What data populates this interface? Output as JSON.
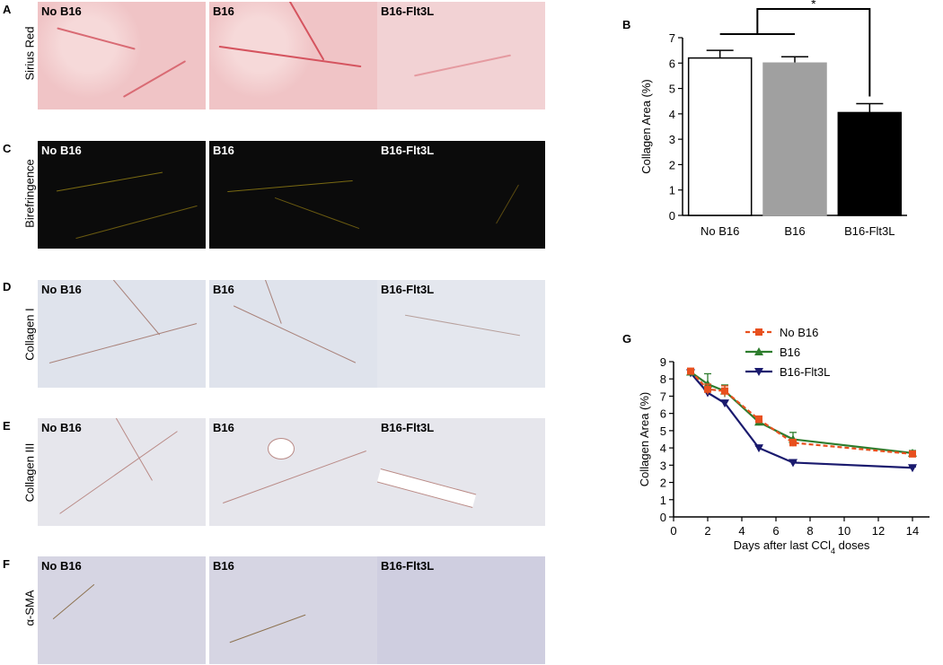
{
  "panel_letters": {
    "a": "A",
    "b": "B",
    "c": "C",
    "d": "D",
    "e": "E",
    "f": "F",
    "g": "G"
  },
  "row_labels": {
    "sirius": "Sirius Red",
    "biref": "Birefringence",
    "col1": "Collagen I",
    "col3": "Collagen III",
    "sma": "α-SMA"
  },
  "groups": [
    "No B16",
    "B16",
    "B16-Flt3L"
  ],
  "colors": {
    "sirius": "#f0c4c6",
    "biref": "#0b0b0b",
    "ihc": "#dfe3ec",
    "sma": "#d6d5e3",
    "no_b16": "#e8501e",
    "b16": "#2e7d2e",
    "flt3l": "#1a1a6e"
  },
  "chart_data": [
    {
      "type": "bar",
      "panel": "B",
      "categories": [
        "No B16",
        "B16",
        "B16-Flt3L"
      ],
      "values": [
        6.2,
        6.0,
        4.05
      ],
      "errors": [
        0.3,
        0.25,
        0.35
      ],
      "bar_colors": [
        "#ffffff",
        "#a0a0a0",
        "#000000"
      ],
      "ylabel": "Collagen Area (%)",
      "ylim": [
        0,
        7
      ],
      "yticks": [
        "0",
        "1",
        "2",
        "3",
        "4",
        "5",
        "6",
        "7"
      ],
      "significance": "*"
    },
    {
      "type": "line",
      "panel": "G",
      "xlabel_main": "Days after last CCl",
      "xlabel_sub": "4",
      "xlabel_end": " doses",
      "ylabel": "Collagen Area (%)",
      "xlim": [
        0,
        15
      ],
      "ylim": [
        0,
        9
      ],
      "xticks": [
        "0",
        "2",
        "4",
        "6",
        "8",
        "10",
        "12",
        "14"
      ],
      "yticks": [
        "0",
        "1",
        "2",
        "3",
        "4",
        "5",
        "6",
        "7",
        "8",
        "9"
      ],
      "series": [
        {
          "name": "No B16",
          "x": [
            1,
            2,
            3,
            5,
            7,
            14
          ],
          "y": [
            8.45,
            7.4,
            7.3,
            5.65,
            4.3,
            3.65
          ],
          "err": [
            0.1,
            0.3,
            0.3,
            0.2,
            0.2,
            0.15
          ],
          "color": "#e8501e",
          "marker": "square",
          "dash": true
        },
        {
          "name": "B16",
          "x": [
            1,
            2,
            3,
            5,
            7,
            14
          ],
          "y": [
            8.4,
            7.7,
            7.3,
            5.5,
            4.5,
            3.7
          ],
          "err": [
            0.1,
            0.6,
            0.35,
            0.2,
            0.4,
            0.15
          ],
          "color": "#2e7d2e",
          "marker": "triangle-up",
          "dash": false
        },
        {
          "name": "B16-Flt3L",
          "x": [
            1,
            2,
            3,
            5,
            7,
            14
          ],
          "y": [
            8.35,
            7.2,
            6.6,
            4.0,
            3.15,
            2.85
          ],
          "err": [
            0.1,
            0.15,
            0.15,
            0.1,
            0.05,
            0.05
          ],
          "color": "#1a1a6e",
          "marker": "triangle-down",
          "dash": false
        }
      ]
    }
  ]
}
